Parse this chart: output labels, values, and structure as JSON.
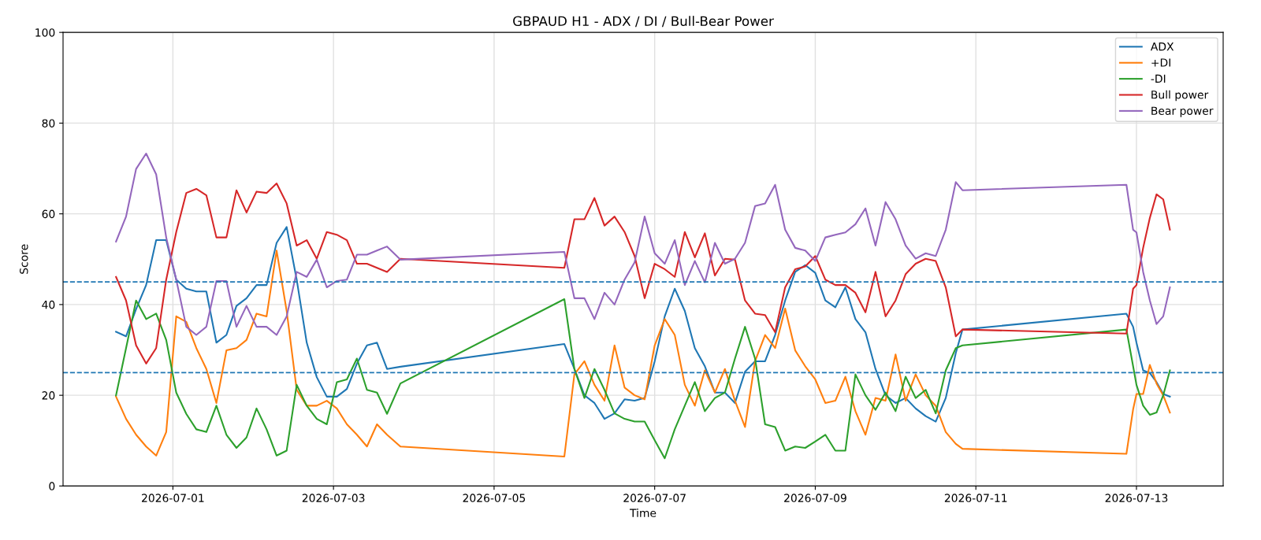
{
  "chart_data": {
    "type": "line",
    "title": "GBPAUD H1 - ADX / DI / Bull-Bear Power",
    "xlabel": "Time",
    "ylabel": "Score",
    "x": [
      "2026-06-30T07:00",
      "2026-06-30T10:00",
      "2026-06-30T13:00",
      "2026-06-30T16:00",
      "2026-06-30T19:00",
      "2026-06-30T22:00",
      "2026-07-01T01:00",
      "2026-07-01T04:00",
      "2026-07-01T07:00",
      "2026-07-01T10:00",
      "2026-07-01T13:00",
      "2026-07-01T16:00",
      "2026-07-01T19:00",
      "2026-07-01T22:00",
      "2026-07-02T01:00",
      "2026-07-02T04:00",
      "2026-07-02T07:00",
      "2026-07-02T10:00",
      "2026-07-02T13:00",
      "2026-07-02T16:00",
      "2026-07-02T19:00",
      "2026-07-02T22:00",
      "2026-07-03T01:00",
      "2026-07-03T04:00",
      "2026-07-03T07:00",
      "2026-07-03T10:00",
      "2026-07-03T13:00",
      "2026-07-03T16:00",
      "2026-07-03T20:00",
      "2026-07-05T21:00",
      "2026-07-06T00:00",
      "2026-07-06T03:00",
      "2026-07-06T06:00",
      "2026-07-06T09:00",
      "2026-07-06T12:00",
      "2026-07-06T15:00",
      "2026-07-06T18:00",
      "2026-07-06T21:00",
      "2026-07-07T00:00",
      "2026-07-07T03:00",
      "2026-07-07T06:00",
      "2026-07-07T09:00",
      "2026-07-07T12:00",
      "2026-07-07T15:00",
      "2026-07-07T18:00",
      "2026-07-07T21:00",
      "2026-07-08T00:00",
      "2026-07-08T03:00",
      "2026-07-08T06:00",
      "2026-07-08T09:00",
      "2026-07-08T12:00",
      "2026-07-08T15:00",
      "2026-07-08T18:00",
      "2026-07-08T21:00",
      "2026-07-09T00:00",
      "2026-07-09T03:00",
      "2026-07-09T06:00",
      "2026-07-09T09:00",
      "2026-07-09T12:00",
      "2026-07-09T15:00",
      "2026-07-09T18:00",
      "2026-07-09T21:00",
      "2026-07-10T00:00",
      "2026-07-10T03:00",
      "2026-07-10T06:00",
      "2026-07-10T09:00",
      "2026-07-10T12:00",
      "2026-07-10T15:00",
      "2026-07-10T18:00",
      "2026-07-10T20:00",
      "2026-07-12T21:00",
      "2026-07-12T23:00",
      "2026-07-13T00:00",
      "2026-07-13T02:00",
      "2026-07-13T04:00",
      "2026-07-13T06:00",
      "2026-07-13T08:00",
      "2026-07-13T10:00"
    ],
    "series": [
      {
        "name": "ADX",
        "color": "#1f77b4",
        "values": [
          34.0,
          33,
          39,
          44.3,
          54.2,
          54.2,
          45.5,
          43.5,
          42.9,
          42.9,
          31.6,
          33.3,
          39.7,
          41.4,
          44.3,
          44.3,
          53.6,
          57.1,
          45.5,
          31.6,
          24,
          19.7,
          19.7,
          21.4,
          27,
          31,
          31.6,
          25.8,
          26.3,
          31.3,
          25.8,
          20,
          18.3,
          14.8,
          16,
          19.1,
          18.8,
          19.4,
          27.5,
          37.4,
          43.5,
          38.6,
          30.4,
          26.4,
          20.6,
          20.6,
          18.3,
          25.2,
          27.5,
          27.5,
          33.3,
          40.9,
          47.2,
          48.7,
          47,
          40.9,
          39.4,
          43.8,
          36.8,
          33.9,
          25.8,
          20,
          18.3,
          19.4,
          17.1,
          15.4,
          14.2,
          19.4,
          29.3,
          34.5,
          38,
          35.1,
          31.6,
          25.5,
          24.9,
          22.9,
          20.3,
          19.7
        ]
      },
      {
        "name": "+DI",
        "color": "#ff7f0e",
        "values": [
          19.7,
          14.8,
          11.3,
          8.7,
          6.7,
          11.9,
          37.4,
          36.2,
          30.4,
          25.8,
          18.3,
          29.9,
          30.4,
          32.2,
          38,
          37.4,
          51.9,
          38.6,
          21.2,
          17.7,
          17.7,
          18.8,
          17.1,
          13.6,
          11.3,
          8.7,
          13.6,
          11.3,
          8.7,
          6.5,
          24.6,
          27.5,
          22.3,
          18.8,
          31,
          21.7,
          20,
          19.1,
          31,
          36.8,
          33.3,
          22.3,
          17.7,
          25.5,
          20.6,
          25.8,
          18.8,
          13,
          27.5,
          33.3,
          30.4,
          39.1,
          29.9,
          26.4,
          23.5,
          18.3,
          18.8,
          24.1,
          16.5,
          11.3,
          19.4,
          18.8,
          29,
          18.8,
          24.6,
          20,
          17.7,
          11.9,
          9.3,
          8.2,
          7.1,
          16.9,
          20.3,
          20.3,
          26.7,
          22.6,
          20,
          16.2
        ]
      },
      {
        "name": "-DI",
        "color": "#2ca02c",
        "values": [
          20,
          30.4,
          40.9,
          36.8,
          38,
          32.2,
          20.6,
          15.9,
          12.5,
          11.9,
          17.7,
          11.3,
          8.4,
          10.7,
          17.1,
          12.5,
          6.7,
          7.8,
          22.3,
          17.7,
          14.8,
          13.6,
          22.9,
          23.5,
          28.1,
          21.2,
          20.6,
          15.9,
          22.6,
          41.2,
          25.8,
          19.4,
          25.8,
          21.2,
          16,
          14.8,
          14.2,
          14.2,
          10.1,
          6.1,
          12.5,
          17.7,
          22.9,
          16.5,
          19.4,
          20.6,
          28.1,
          35.1,
          28.1,
          13.6,
          13,
          7.8,
          8.7,
          8.4,
          9.8,
          11.3,
          7.8,
          7.8,
          24.6,
          20,
          16.8,
          20.6,
          16.5,
          24.1,
          19.4,
          21.2,
          16,
          25.5,
          30.4,
          31,
          34.5,
          26.4,
          22.3,
          17.7,
          15.7,
          16.2,
          20,
          25.5
        ]
      },
      {
        "name": "Bull power",
        "color": "#d62728",
        "values": [
          46.1,
          40.9,
          31,
          27,
          30.4,
          45.5,
          56,
          64.6,
          65.5,
          64.1,
          54.8,
          54.8,
          65.2,
          60.3,
          64.9,
          64.6,
          66.7,
          62.3,
          53,
          54.2,
          50.1,
          56,
          55.4,
          54.2,
          49,
          49,
          48.1,
          47.2,
          50.1,
          48.1,
          58.8,
          58.8,
          63.5,
          57.4,
          59.4,
          56,
          50.7,
          41.4,
          49,
          47.8,
          46.1,
          56,
          50.4,
          55.7,
          46.4,
          50.1,
          49.9,
          40.9,
          38,
          37.7,
          33.9,
          43.8,
          47.8,
          48.4,
          50.7,
          45.5,
          44.3,
          44.3,
          42.6,
          38.3,
          47.2,
          37.4,
          40.9,
          46.7,
          49,
          50.1,
          49.6,
          43.8,
          33,
          34.5,
          33.6,
          43.5,
          44.3,
          52.5,
          59.1,
          64.3,
          63.2,
          56.5
        ]
      },
      {
        "name": "Bear power",
        "color": "#9467bd",
        "values": [
          53.9,
          59.4,
          69.9,
          73.3,
          68.7,
          54.8,
          45.5,
          35.1,
          33.3,
          35.1,
          45.2,
          45.2,
          35.1,
          39.7,
          35.1,
          35.1,
          33.3,
          37.4,
          47.2,
          46.1,
          49.9,
          43.8,
          45.2,
          45.5,
          51,
          51,
          51.9,
          52.8,
          49.9,
          51.6,
          41.4,
          41.4,
          36.8,
          42.6,
          40,
          45.5,
          49.3,
          59.4,
          51.3,
          49,
          54.2,
          44.3,
          49.6,
          44.9,
          53.6,
          49,
          50.1,
          53.6,
          61.7,
          62.3,
          66.4,
          56.5,
          52.5,
          51.9,
          49.6,
          54.8,
          55.4,
          55.9,
          57.7,
          61.2,
          53,
          62.6,
          58.8,
          53,
          50.1,
          51.3,
          50.7,
          56.5,
          67,
          65.2,
          66.4,
          56.5,
          55.9,
          47.2,
          40.9,
          35.7,
          37.4,
          43.8
        ]
      }
    ],
    "xlim": [
      "2026-06-29T15:10",
      "2026-07-14T01:55"
    ],
    "xticks": [
      "2026-07-01",
      "2026-07-03",
      "2026-07-05",
      "2026-07-07",
      "2026-07-09",
      "2026-07-11",
      "2026-07-13"
    ],
    "ylim": [
      0,
      100
    ],
    "yticks": [
      0,
      20,
      40,
      60,
      80,
      100
    ],
    "ref_lines": [
      {
        "axis": "y",
        "value": 45,
        "color": "#1f77b4",
        "line_style": "dashed"
      },
      {
        "axis": "y",
        "value": 25,
        "color": "#1f77b4",
        "line_style": "dashed"
      }
    ],
    "grid": true,
    "legend": "top right",
    "line_style": "solid",
    "marker": "none"
  }
}
